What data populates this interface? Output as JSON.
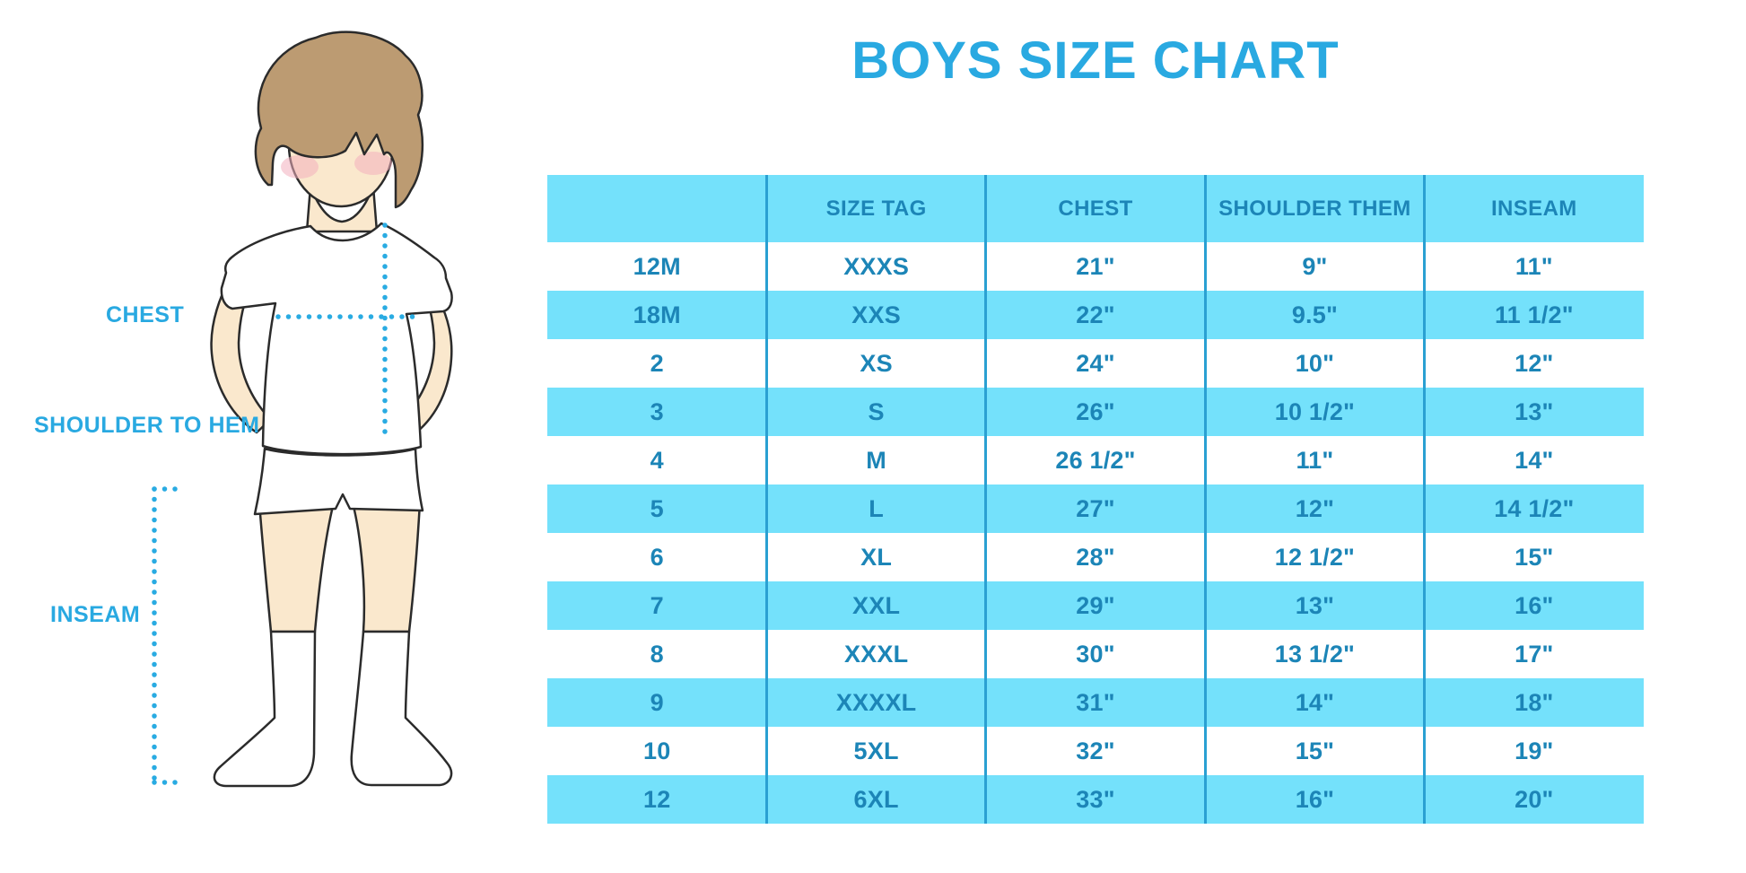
{
  "title": "BOYS SIZE CHART",
  "diagram": {
    "chest_label": "CHEST",
    "shoulder_label": "SHOULDER TO HEM",
    "inseam_label": "INSEAM"
  },
  "colors": {
    "accent_blue": "#29A9E1",
    "stripe_blue": "#74E1FB",
    "table_text_blue": "#1C85B7",
    "divider_blue": "#2AA0D2",
    "hair_brown": "#BC9B72",
    "skin": "#FAE8CD",
    "cheek_pink": "#F2AEBE"
  },
  "chart_data": {
    "type": "table",
    "title": "BOYS SIZE CHART",
    "columns": [
      "",
      "SIZE TAG",
      "CHEST",
      "SHOULDER THEM",
      "INSEAM"
    ],
    "rows": [
      [
        "12M",
        "XXXS",
        "21\"",
        "9\"",
        "11\""
      ],
      [
        "18M",
        "XXS",
        "22\"",
        "9.5\"",
        "11 1/2\""
      ],
      [
        "2",
        "XS",
        "24\"",
        "10\"",
        "12\""
      ],
      [
        "3",
        "S",
        "26\"",
        "10 1/2\"",
        "13\""
      ],
      [
        "4",
        "M",
        "26 1/2\"",
        "11\"",
        "14\""
      ],
      [
        "5",
        "L",
        "27\"",
        "12\"",
        "14 1/2\""
      ],
      [
        "6",
        "XL",
        "28\"",
        "12 1/2\"",
        "15\""
      ],
      [
        "7",
        "XXL",
        "29\"",
        "13\"",
        "16\""
      ],
      [
        "8",
        "XXXL",
        "30\"",
        "13 1/2\"",
        "17\""
      ],
      [
        "9",
        "XXXXL",
        "31\"",
        "14\"",
        "18\""
      ],
      [
        "10",
        "5XL",
        "32\"",
        "15\"",
        "19\""
      ],
      [
        "12",
        "6XL",
        "33\"",
        "16\"",
        "20\""
      ]
    ]
  }
}
